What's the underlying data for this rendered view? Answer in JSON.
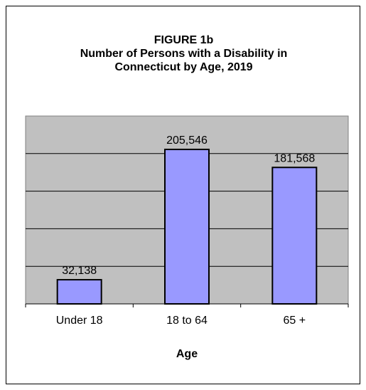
{
  "chart_data": {
    "type": "bar",
    "title_lines": [
      "FIGURE 1b",
      "Number of Persons with a Disability in",
      "Connecticut by Age, 2019"
    ],
    "categories": [
      "Under 18",
      "18 to 64",
      "65 +"
    ],
    "values": [
      32138,
      205546,
      181568
    ],
    "data_labels": [
      "32,138",
      "205,546",
      "181,568"
    ],
    "xlabel": "Age",
    "ylabel": "",
    "ylim": [
      0,
      250000
    ],
    "grid": true,
    "bar_color": "#9999ff",
    "plot_background": "#c0c0c0",
    "legend": "none"
  }
}
